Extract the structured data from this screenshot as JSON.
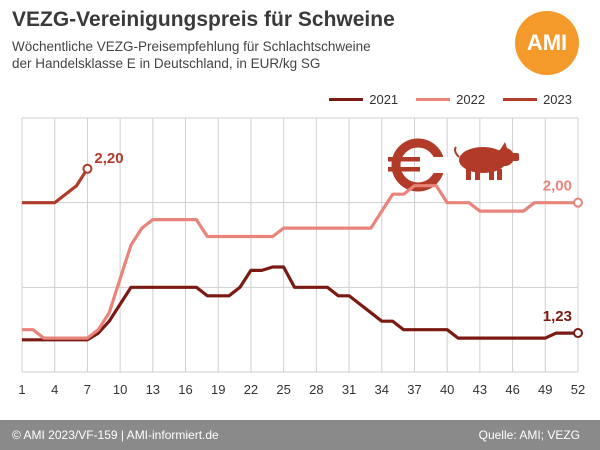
{
  "header": {
    "title": "VEZG-Vereinigungspreis für Schweine",
    "subtitle_line1": "Wöchentliche VEZG-Preisempfehlung für Schlachtschweine",
    "subtitle_line2": "der Handelsklasse E in Deutschland, in EUR/kg SG",
    "logo_text": "AMI"
  },
  "footer": {
    "left": "© AMI 2023/VF-159 | AMI-informiert.de",
    "right": "Quelle: AMI; VEZG"
  },
  "colors": {
    "s2021": "#7a1a12",
    "s2022": "#e8847a",
    "s2023": "#b23a28",
    "grid": "#cfcfcf",
    "footer_bg": "#8a8a8a",
    "logo_bg": "#f39a2b"
  },
  "icons": [
    "euro-icon",
    "pig-icon"
  ],
  "chart_data": {
    "type": "line",
    "x_ticks": [
      1,
      4,
      7,
      10,
      13,
      16,
      19,
      22,
      25,
      28,
      31,
      34,
      37,
      40,
      43,
      46,
      49,
      52
    ],
    "xlim": [
      1,
      52
    ],
    "ylim": [
      1.0,
      2.5
    ],
    "grid": true,
    "legend_position": "top-right",
    "series": [
      {
        "name": "2021",
        "color": "#7a1a12",
        "x": [
          1,
          2,
          3,
          4,
          5,
          6,
          7,
          8,
          9,
          10,
          11,
          12,
          13,
          14,
          15,
          16,
          17,
          18,
          19,
          20,
          21,
          22,
          23,
          24,
          25,
          26,
          27,
          28,
          29,
          30,
          31,
          32,
          33,
          34,
          35,
          36,
          37,
          38,
          39,
          40,
          41,
          42,
          43,
          44,
          45,
          46,
          47,
          48,
          49,
          50,
          51,
          52
        ],
        "y": [
          1.19,
          1.19,
          1.19,
          1.19,
          1.19,
          1.19,
          1.19,
          1.23,
          1.3,
          1.4,
          1.5,
          1.5,
          1.5,
          1.5,
          1.5,
          1.5,
          1.5,
          1.45,
          1.45,
          1.45,
          1.5,
          1.6,
          1.6,
          1.62,
          1.62,
          1.5,
          1.5,
          1.5,
          1.5,
          1.45,
          1.45,
          1.4,
          1.35,
          1.3,
          1.3,
          1.25,
          1.25,
          1.25,
          1.25,
          1.25,
          1.2,
          1.2,
          1.2,
          1.2,
          1.2,
          1.2,
          1.2,
          1.2,
          1.2,
          1.23,
          1.23,
          1.23
        ],
        "end_label": "1,23"
      },
      {
        "name": "2022",
        "color": "#e8847a",
        "x": [
          1,
          2,
          3,
          4,
          5,
          6,
          7,
          8,
          9,
          10,
          11,
          12,
          13,
          14,
          15,
          16,
          17,
          18,
          19,
          20,
          21,
          22,
          23,
          24,
          25,
          26,
          27,
          28,
          29,
          30,
          31,
          32,
          33,
          34,
          35,
          36,
          37,
          38,
          39,
          40,
          41,
          42,
          43,
          44,
          45,
          46,
          47,
          48,
          49,
          50,
          51,
          52
        ],
        "y": [
          1.25,
          1.25,
          1.2,
          1.2,
          1.2,
          1.2,
          1.2,
          1.25,
          1.35,
          1.55,
          1.75,
          1.85,
          1.9,
          1.9,
          1.9,
          1.9,
          1.9,
          1.8,
          1.8,
          1.8,
          1.8,
          1.8,
          1.8,
          1.8,
          1.85,
          1.85,
          1.85,
          1.85,
          1.85,
          1.85,
          1.85,
          1.85,
          1.85,
          1.95,
          2.05,
          2.05,
          2.1,
          2.1,
          2.1,
          2.0,
          2.0,
          2.0,
          1.95,
          1.95,
          1.95,
          1.95,
          1.95,
          2.0,
          2.0,
          2.0,
          2.0,
          2.0
        ],
        "end_label": "2,00"
      },
      {
        "name": "2023",
        "color": "#b23a28",
        "x": [
          1,
          2,
          3,
          4,
          5,
          6,
          7
        ],
        "y": [
          2.0,
          2.0,
          2.0,
          2.0,
          2.05,
          2.1,
          2.2
        ],
        "end_label": "2,20"
      }
    ]
  }
}
